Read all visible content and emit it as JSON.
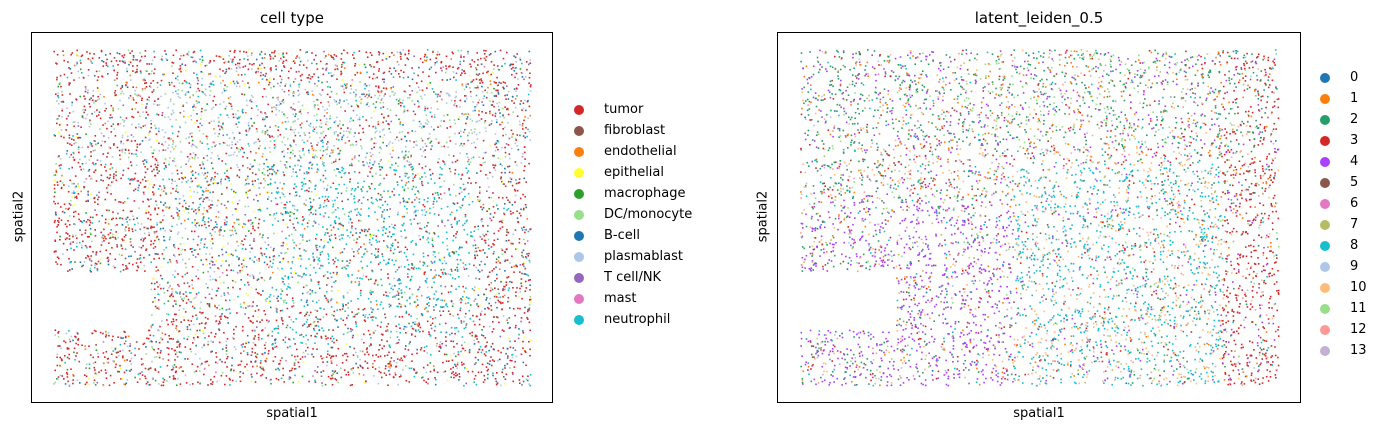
{
  "chart_data": [
    {
      "type": "scatter",
      "title": "cell type",
      "xlabel": "spatial1",
      "ylabel": "spatial2",
      "ticks": "none",
      "legend_position": "right",
      "categories": [
        {
          "label": "tumor",
          "color": "#d62728"
        },
        {
          "label": "fibroblast",
          "color": "#8c564b"
        },
        {
          "label": "endothelial",
          "color": "#ff7f0e"
        },
        {
          "label": "epithelial",
          "color": "#ffff33"
        },
        {
          "label": "macrophage",
          "color": "#2ca02c"
        },
        {
          "label": "DC/monocyte",
          "color": "#98df8a"
        },
        {
          "label": "B-cell",
          "color": "#1f77b4"
        },
        {
          "label": "plasmablast",
          "color": "#aec7e8"
        },
        {
          "label": "T cell/NK",
          "color": "#9467bd"
        },
        {
          "label": "mast",
          "color": "#e377c2"
        },
        {
          "label": "neutrophil",
          "color": "#17becf"
        }
      ]
    },
    {
      "type": "scatter",
      "title": "latent_leiden_0.5",
      "xlabel": "spatial1",
      "ylabel": "spatial2",
      "ticks": "none",
      "legend_position": "right",
      "categories": [
        {
          "label": "0",
          "color": "#1f77b4"
        },
        {
          "label": "1",
          "color": "#ff7f0e"
        },
        {
          "label": "2",
          "color": "#279e68"
        },
        {
          "label": "3",
          "color": "#d62728"
        },
        {
          "label": "4",
          "color": "#aa40fc"
        },
        {
          "label": "5",
          "color": "#8c564b"
        },
        {
          "label": "6",
          "color": "#e377c2"
        },
        {
          "label": "7",
          "color": "#b5bd61"
        },
        {
          "label": "8",
          "color": "#17becf"
        },
        {
          "label": "9",
          "color": "#aec7e8"
        },
        {
          "label": "10",
          "color": "#ffbb78"
        },
        {
          "label": "11",
          "color": "#98df8a"
        },
        {
          "label": "12",
          "color": "#ff9896"
        },
        {
          "label": "13",
          "color": "#c5b0d5"
        }
      ]
    }
  ]
}
